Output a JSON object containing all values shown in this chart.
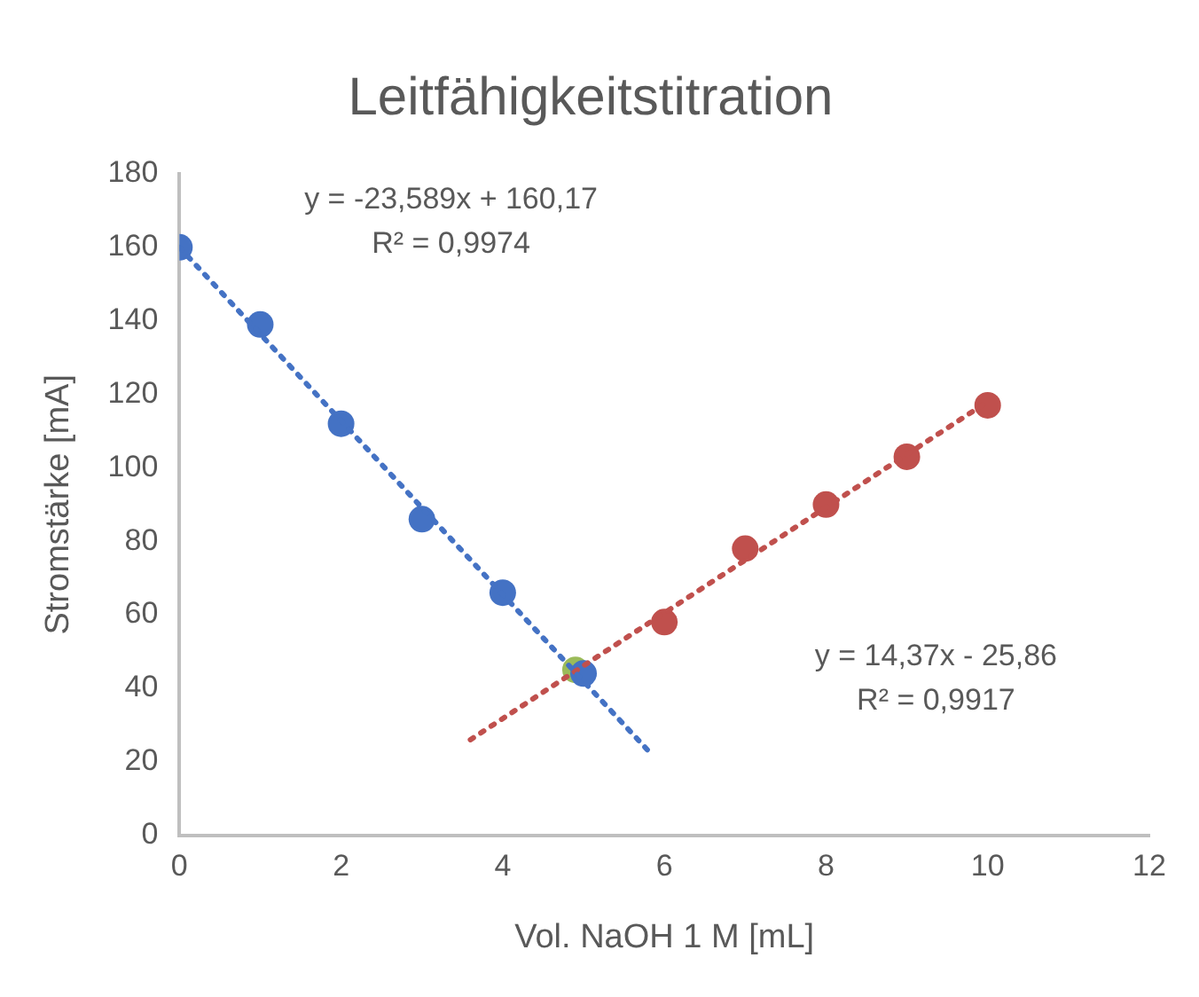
{
  "chart_data": {
    "type": "scatter",
    "title": "Leitfähigkeitstitration",
    "xlabel": "Vol. NaOH 1 M [mL]",
    "ylabel": "Stromstärke [mA]",
    "xlim": [
      0,
      12
    ],
    "xticks": [
      0,
      2,
      4,
      6,
      8,
      10,
      12
    ],
    "ylim": [
      0,
      180
    ],
    "yticks": [
      0,
      20,
      40,
      60,
      80,
      100,
      120,
      140,
      160,
      180
    ],
    "grid": false,
    "legend": false,
    "marker": "circle",
    "series": [
      {
        "type": "line",
        "color": "#4472c4",
        "line_style": "dotted",
        "marker": "none",
        "x": [
          0,
          5.8
        ],
        "values": [
          160,
          23
        ]
      },
      {
        "type": "line",
        "color": "#c0504d",
        "line_style": "dotted",
        "marker": "none",
        "x": [
          3.6,
          10
        ],
        "values": [
          26,
          118
        ]
      },
      {
        "color": "#4472c4",
        "x": [
          0,
          1,
          2,
          3,
          4,
          5
        ],
        "values": [
          160,
          139,
          112,
          86,
          66,
          44
        ]
      },
      {
        "color": "#9bbb59",
        "x": [
          4.9
        ],
        "values": [
          45
        ]
      },
      {
        "color": "#c0504d",
        "x": [
          6,
          7,
          8,
          9,
          10
        ],
        "values": [
          58,
          78,
          90,
          103,
          117
        ]
      }
    ],
    "annotations": [
      "y = -23,589x + 160,17\nR² = 0,9974",
      "y = 14,37x - 25,86\nR² = 0,9917"
    ]
  }
}
